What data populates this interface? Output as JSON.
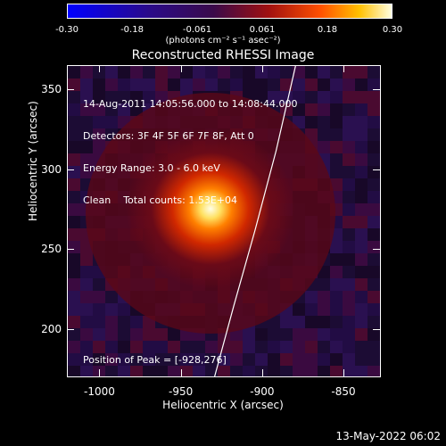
{
  "colorbar": {
    "ticks": [
      "-0.30",
      "-0.18",
      "-0.061",
      "0.061",
      "0.18",
      "0.30"
    ],
    "units": "(photons cm⁻² s⁻¹ asec⁻²)"
  },
  "title": "Reconstructed RHESSI Image",
  "info_lines": [
    "14-Aug-2011 14:05:56.000 to 14:08:44.000",
    "Detectors: 3F 4F 5F 6F 7F 8F, Att 0",
    "Energy Range: 3.0 - 6.0 keV",
    "Clean    Total counts: 1.53E+04"
  ],
  "peak_text": "Position of Peak = [-928,276]",
  "date_stamp": "13-May-2022 06:02",
  "chart_data": {
    "type": "heatmap",
    "title": "Reconstructed RHESSI Image",
    "xlabel": "Heliocentric X (arcsec)",
    "ylabel": "Heliocentric Y (arcsec)",
    "xlim": [
      -1020,
      -827
    ],
    "ylim": [
      170,
      365
    ],
    "xticks": [
      -1000,
      -950,
      -900,
      -850
    ],
    "yticks": [
      200,
      250,
      300,
      350
    ],
    "xtick_labels": [
      "-1000",
      "-950",
      "-900",
      "-850"
    ],
    "ytick_labels": [
      "200",
      "250",
      "300",
      "350"
    ],
    "color_range": [
      -0.3,
      0.3
    ],
    "colormap": "black-blue-purple-red-orange-yellow-white",
    "peak": {
      "x": -928,
      "y": 276
    },
    "limb_curve": {
      "x": [
        -930,
        -918,
        -905,
        -892,
        -880
      ],
      "y": [
        170,
        215,
        262,
        312,
        365
      ]
    }
  }
}
